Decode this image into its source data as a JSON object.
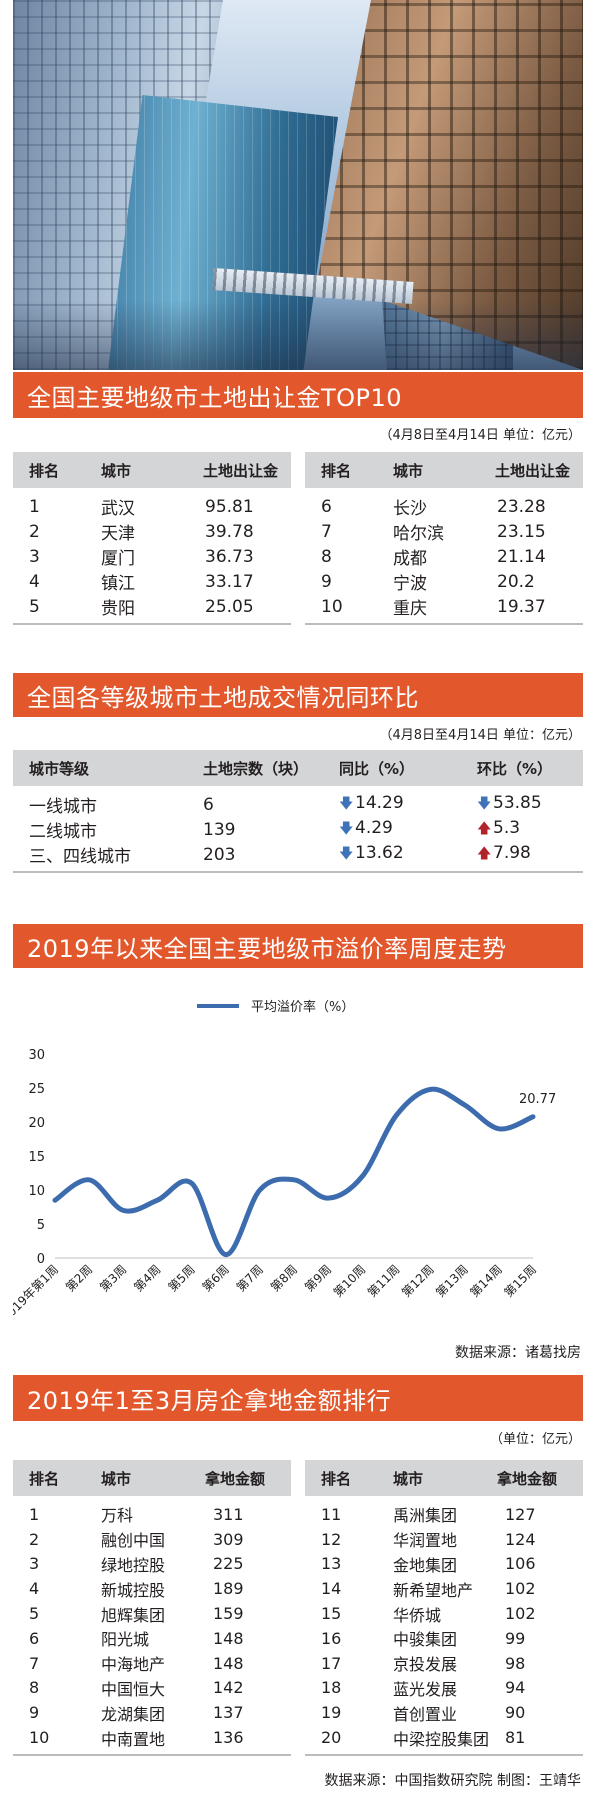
{
  "section1": {
    "title": "全国主要地级市土地出让金TOP10",
    "period": "（4月8日至4月14日  单位：亿元）",
    "headers": [
      "排名",
      "城市",
      "土地出让金"
    ],
    "left": [
      {
        "rank": "1",
        "city": "武汉",
        "value": "95.81"
      },
      {
        "rank": "2",
        "city": "天津",
        "value": "39.78"
      },
      {
        "rank": "3",
        "city": "厦门",
        "value": "36.73"
      },
      {
        "rank": "4",
        "city": "镇江",
        "value": "33.17"
      },
      {
        "rank": "5",
        "city": "贵阳",
        "value": "25.05"
      }
    ],
    "right": [
      {
        "rank": "6",
        "city": "长沙",
        "value": "23.28"
      },
      {
        "rank": "7",
        "city": "哈尔滨",
        "value": "23.15"
      },
      {
        "rank": "8",
        "city": "成都",
        "value": "21.14"
      },
      {
        "rank": "9",
        "city": "宁波",
        "value": "20.2"
      },
      {
        "rank": "10",
        "city": "重庆",
        "value": "19.37"
      }
    ]
  },
  "section2": {
    "title": "全国各等级城市土地成交情况同环比",
    "period": "（4月8日至4月14日  单位：亿元）",
    "headers": [
      "城市等级",
      "土地宗数（块）",
      "同比（%）",
      "环比（%）"
    ],
    "rows": [
      {
        "grade": "一线城市",
        "count": "6",
        "yoy": "14.29",
        "yoy_dir": "down",
        "mom": "53.85",
        "mom_dir": "down"
      },
      {
        "grade": "二线城市",
        "count": "139",
        "yoy": "4.29",
        "yoy_dir": "down",
        "mom": "5.3",
        "mom_dir": "up"
      },
      {
        "grade": "三、四线城市",
        "count": "203",
        "yoy": "13.62",
        "yoy_dir": "down",
        "mom": "7.98",
        "mom_dir": "up"
      }
    ],
    "arrow_colors": {
      "down": "#3f73b7",
      "up": "#b0232a"
    }
  },
  "section3": {
    "title": "2019年以来全国主要地级市溢价率周度走势",
    "source": "数据来源：诸葛找房"
  },
  "chart_data": {
    "type": "line",
    "categories": [
      "2019年第1周",
      "第2周",
      "第3周",
      "第4周",
      "第5周",
      "第6周",
      "第7周",
      "第8周",
      "第9周",
      "第10周",
      "第11周",
      "第12周",
      "第13周",
      "第14周",
      "第15周"
    ],
    "series": [
      {
        "name": "平均溢价率（%）",
        "values": [
          8.5,
          11.5,
          7,
          8.5,
          11,
          0.5,
          10,
          11.5,
          8.8,
          12,
          21,
          24.8,
          22.5,
          19,
          20.77
        ],
        "color": "#3c6cae"
      }
    ],
    "annotations": [
      {
        "index": 14,
        "label": "20.77"
      }
    ],
    "ylim": [
      0,
      30
    ],
    "yticks": [
      0,
      5,
      10,
      15,
      20,
      25,
      30
    ],
    "grid": false,
    "legend": "top-center"
  },
  "section4": {
    "title": "2019年1至3月房企拿地金额排行",
    "period": "（单位：亿元）",
    "headers": [
      "排名",
      "城市",
      "拿地金额"
    ],
    "left": [
      {
        "rank": "1",
        "name": "万科",
        "value": "311"
      },
      {
        "rank": "2",
        "name": "融创中国",
        "value": "309"
      },
      {
        "rank": "3",
        "name": "绿地控股",
        "value": "225"
      },
      {
        "rank": "4",
        "name": "新城控股",
        "value": "189"
      },
      {
        "rank": "5",
        "name": "旭辉集团",
        "value": "159"
      },
      {
        "rank": "6",
        "name": "阳光城",
        "value": "148"
      },
      {
        "rank": "7",
        "name": "中海地产",
        "value": "148"
      },
      {
        "rank": "8",
        "name": "中国恒大",
        "value": "142"
      },
      {
        "rank": "9",
        "name": "龙湖集团",
        "value": "137"
      },
      {
        "rank": "10",
        "name": "中南置地",
        "value": "136"
      }
    ],
    "right": [
      {
        "rank": "11",
        "name": "禹洲集团",
        "value": "127"
      },
      {
        "rank": "12",
        "name": "华润置地",
        "value": "124"
      },
      {
        "rank": "13",
        "name": "金地集团",
        "value": "106"
      },
      {
        "rank": "14",
        "name": "新希望地产",
        "value": "102"
      },
      {
        "rank": "15",
        "name": "华侨城",
        "value": "102"
      },
      {
        "rank": "16",
        "name": "中骏集团",
        "value": "99"
      },
      {
        "rank": "17",
        "name": "京投发展",
        "value": "98"
      },
      {
        "rank": "18",
        "name": "蓝光发展",
        "value": "94"
      },
      {
        "rank": "19",
        "name": "首创置业",
        "value": "90"
      },
      {
        "rank": "20",
        "name": "中梁控股集团",
        "value": "81"
      }
    ],
    "source": "数据来源：中国指数研究院  制图：王靖华"
  }
}
